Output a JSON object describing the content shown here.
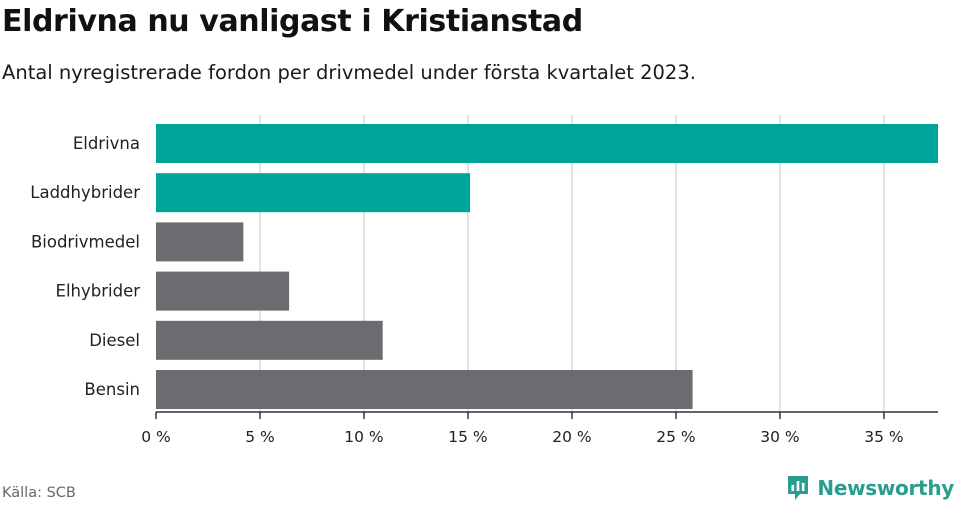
{
  "header": {
    "title": "Eldrivna nu vanligast i Kristianstad",
    "subtitle": "Antal nyregistrerade fordon per drivmedel under första kvartalet 2023."
  },
  "footer": {
    "source": "Källa: SCB",
    "brand": "Newsworthy"
  },
  "colors": {
    "highlight": "#00a599",
    "default": "#6c6b70",
    "grid": "#d9d9d9",
    "axis": "#333333",
    "brand": "#2a9d8f"
  },
  "chart_data": {
    "type": "bar",
    "orientation": "horizontal",
    "categories": [
      "Eldrivna",
      "Laddhybrider",
      "Biodrivmedel",
      "Elhybrider",
      "Diesel",
      "Bensin"
    ],
    "values": [
      37.6,
      15.1,
      4.2,
      6.4,
      10.9,
      25.8
    ],
    "highlighted": [
      true,
      true,
      false,
      false,
      false,
      false
    ],
    "xlim": [
      0,
      37.6
    ],
    "ticks": [
      0,
      5,
      10,
      15,
      20,
      25,
      30,
      35
    ],
    "tick_labels": [
      "0 %",
      "5 %",
      "10 %",
      "15 %",
      "20 %",
      "25 %",
      "30 %",
      "35 %"
    ],
    "grid": true,
    "legend": "none"
  }
}
